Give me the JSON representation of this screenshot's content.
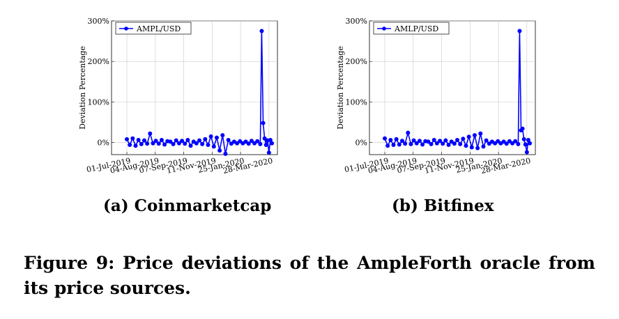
{
  "figure": {
    "caption": "Figure 9: Price deviations of the AmpleForth oracle from its price sources."
  },
  "chart_data": [
    {
      "type": "line",
      "subcaption": "(a) Coinmarketcap",
      "ylabel": "Deviation Percentage",
      "xlabel": "",
      "ylim": [
        -30,
        300
      ],
      "yticks": [
        0,
        100,
        200,
        300
      ],
      "ytick_labels": [
        "0%",
        "100%",
        "200%",
        "300%"
      ],
      "xtick_labels": [
        "01-Jul-2019",
        "04-Aug-2019",
        "07-Sep-2019",
        "11-Nov-2019",
        "25-Jan-2020",
        "28-Mar-2020"
      ],
      "grid": true,
      "legend_position": "top-left",
      "series": [
        {
          "name": "AMPL/USD",
          "color": "#0000ff",
          "x": [
            0,
            2,
            4,
            6,
            8,
            10,
            12,
            14,
            16,
            18,
            20,
            22,
            24,
            26,
            28,
            30,
            32,
            34,
            36,
            38,
            40,
            42,
            44,
            46,
            48,
            50,
            52,
            54,
            56,
            58,
            60,
            62,
            64,
            66,
            68,
            70,
            72,
            74,
            76,
            78,
            80,
            82,
            84,
            86,
            88,
            90,
            92,
            93,
            94,
            95,
            96,
            97,
            98,
            99,
            100
          ],
          "y": [
            8,
            -6,
            10,
            -8,
            6,
            -4,
            5,
            -3,
            22,
            -2,
            4,
            -3,
            6,
            -5,
            3,
            2,
            -4,
            5,
            -2,
            4,
            -3,
            6,
            -8,
            2,
            -2,
            5,
            -4,
            8,
            -6,
            15,
            -10,
            12,
            -20,
            18,
            -28,
            6,
            -3,
            2,
            -2,
            3,
            -2,
            2,
            -3,
            4,
            -2,
            3,
            -4,
            275,
            48,
            10,
            -6,
            5,
            -25,
            6,
            -2
          ]
        }
      ]
    },
    {
      "type": "line",
      "subcaption": "(b) Bitfinex",
      "ylabel": "Deviation Percentage",
      "xlabel": "",
      "ylim": [
        -30,
        300
      ],
      "yticks": [
        0,
        100,
        200,
        300
      ],
      "ytick_labels": [
        "0%",
        "100%",
        "200%",
        "300%"
      ],
      "xtick_labels": [
        "01-Jul-2019",
        "04-Aug-2019",
        "07-Sep-2019",
        "11-Nov-2019",
        "25-Jan-2020",
        "28-Mar-2020"
      ],
      "grid": true,
      "legend_position": "top-left",
      "series": [
        {
          "name": "AMLP/USD",
          "color": "#0000ff",
          "x": [
            0,
            2,
            4,
            6,
            8,
            10,
            12,
            14,
            16,
            18,
            20,
            22,
            24,
            26,
            28,
            30,
            32,
            34,
            36,
            38,
            40,
            42,
            44,
            46,
            48,
            50,
            52,
            54,
            56,
            58,
            60,
            62,
            64,
            66,
            68,
            70,
            72,
            74,
            76,
            78,
            80,
            82,
            84,
            86,
            88,
            90,
            92,
            93,
            94,
            95,
            96,
            97,
            98,
            99,
            100
          ],
          "y": [
            10,
            -8,
            6,
            -6,
            8,
            -5,
            4,
            -3,
            24,
            -4,
            5,
            -2,
            4,
            -5,
            3,
            2,
            -4,
            6,
            -2,
            4,
            -3,
            5,
            -6,
            2,
            -3,
            6,
            -4,
            9,
            -8,
            14,
            -12,
            18,
            -14,
            22,
            -10,
            5,
            -3,
            2,
            -2,
            3,
            -2,
            2,
            -3,
            3,
            -2,
            3,
            -4,
            275,
            30,
            34,
            8,
            -5,
            -24,
            6,
            -2
          ]
        }
      ]
    }
  ]
}
